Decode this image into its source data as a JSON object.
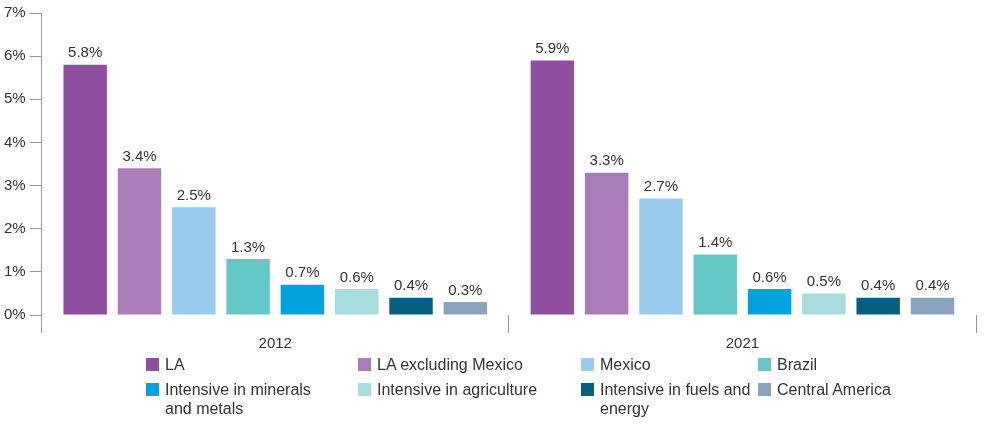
{
  "chart_data": {
    "type": "bar",
    "categories": [
      "2012",
      "2021"
    ],
    "ylim": [
      0,
      7
    ],
    "yticks": [
      {
        "value": 0,
        "label": "0%"
      },
      {
        "value": 1,
        "label": "1%"
      },
      {
        "value": 2,
        "label": "2%"
      },
      {
        "value": 3,
        "label": "3%"
      },
      {
        "value": 4,
        "label": "4%"
      },
      {
        "value": 5,
        "label": "5%"
      },
      {
        "value": 6,
        "label": "6%"
      },
      {
        "value": 7,
        "label": "7%"
      }
    ],
    "grid": false,
    "legend": "bottom",
    "series": [
      {
        "name": "LA",
        "color": "#8e4f9e",
        "values": [
          5.8,
          5.9
        ],
        "value_labels": [
          "5.8%",
          "5.9%"
        ]
      },
      {
        "name": "LA excluding Mexico",
        "color": "#a97db7",
        "values": [
          3.4,
          3.3
        ],
        "value_labels": [
          "3.4%",
          "3.3%"
        ]
      },
      {
        "name": "Mexico",
        "color": "#99cbed",
        "values": [
          2.5,
          2.7
        ],
        "value_labels": [
          "2.5%",
          "2.7%"
        ]
      },
      {
        "name": "Brazil",
        "color": "#66c8c6",
        "values": [
          1.3,
          1.4
        ],
        "value_labels": [
          "1.3%",
          "1.4%"
        ]
      },
      {
        "name": "Intensive in minerals and metals",
        "color": "#00a3e0",
        "values": [
          0.7,
          0.6
        ],
        "value_labels": [
          "0.7%",
          "0.6%"
        ]
      },
      {
        "name": "Intensive in agriculture",
        "color": "#a8dcdd",
        "values": [
          0.6,
          0.5
        ],
        "value_labels": [
          "0.6%",
          "0.5%"
        ]
      },
      {
        "name": "Intensive in fuels and energy",
        "color": "#0a5f80",
        "values": [
          0.4,
          0.4
        ],
        "value_labels": [
          "0.4%",
          "0.4%"
        ]
      },
      {
        "name": "Central America",
        "color": "#8ca3bd",
        "values": [
          0.3,
          0.4
        ],
        "value_labels": [
          "0.3%",
          "0.4%"
        ]
      }
    ]
  }
}
